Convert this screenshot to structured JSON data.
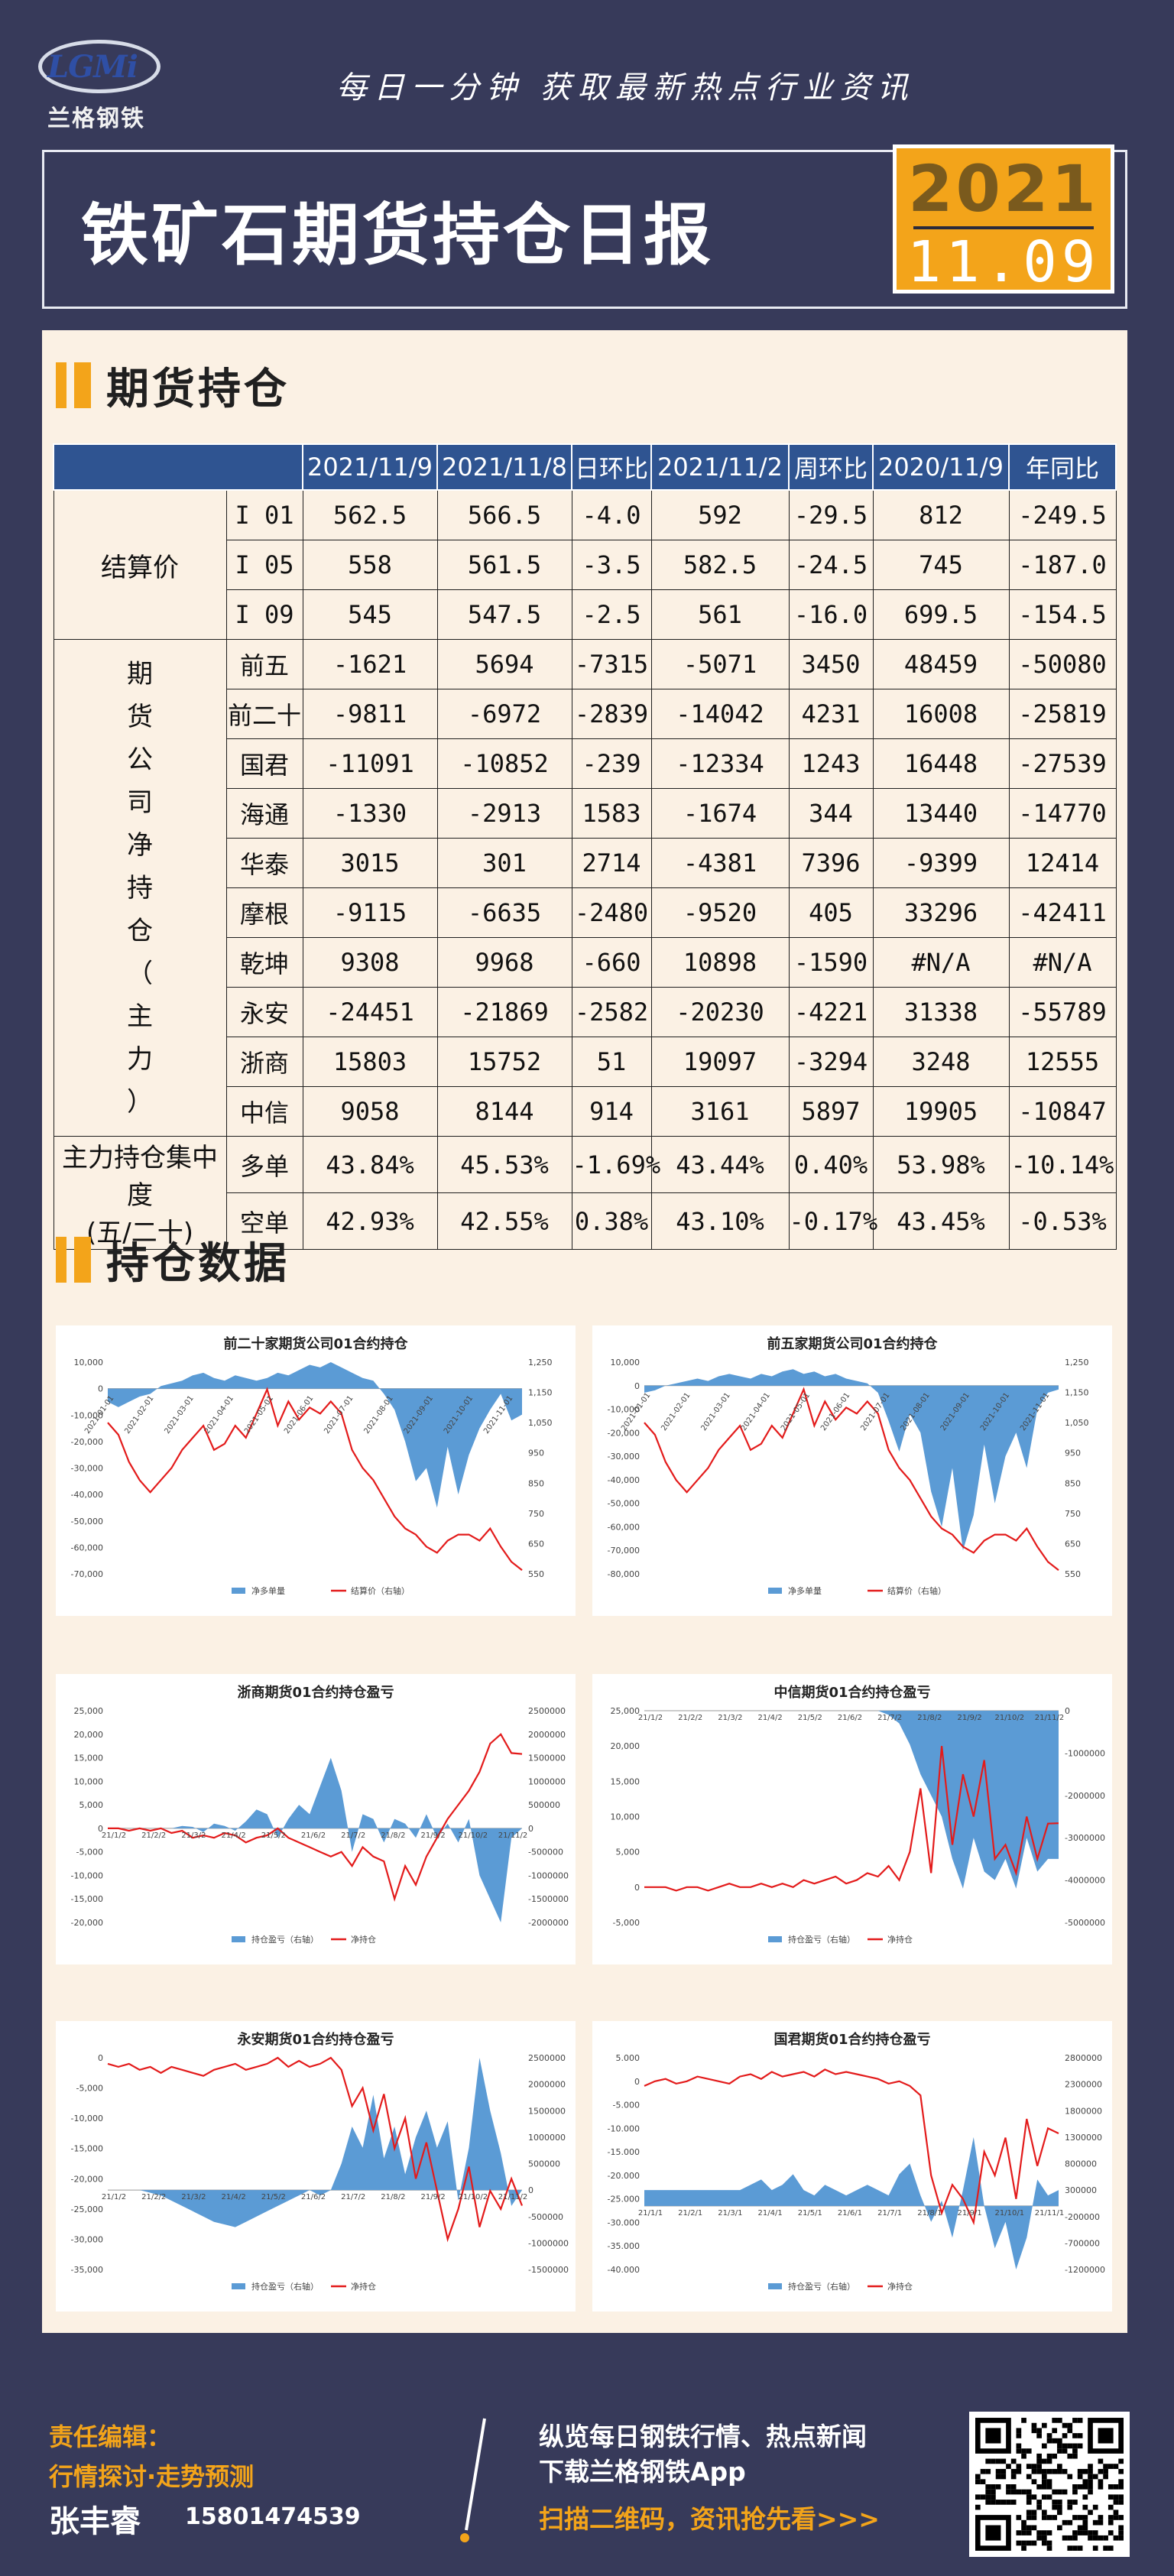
{
  "header": {
    "logo_mark": "LGMi",
    "logo_cn": "兰格钢铁",
    "slogan": "每日一分钟  获取最新热点行业资讯",
    "title": "铁矿石期货持仓日报",
    "year": "2021",
    "date": "11.09"
  },
  "section1_title": "期货持仓",
  "section2_title": "持仓数据",
  "table": {
    "columns": [
      "2021/11/9",
      "2021/11/8",
      "日环比",
      "2021/11/2",
      "周环比",
      "2020/11/9",
      "年同比"
    ],
    "settle_group": "结算价",
    "settle_rows": [
      {
        "name": "I 01",
        "v": [
          "562.5",
          "566.5",
          "-4.0",
          "592",
          "-29.5",
          "812",
          "-249.5"
        ]
      },
      {
        "name": "I 05",
        "v": [
          "558",
          "561.5",
          "-3.5",
          "582.5",
          "-24.5",
          "745",
          "-187.0"
        ]
      },
      {
        "name": "I 09",
        "v": [
          "545",
          "547.5",
          "-2.5",
          "561",
          "-16.0",
          "699.5",
          "-154.5"
        ]
      }
    ],
    "net_group_chars": [
      "期",
      "货",
      "公",
      "司",
      "净",
      "持",
      "仓",
      "（",
      "主",
      "力",
      "）"
    ],
    "net_rows": [
      {
        "name": "前五",
        "v": [
          "-1621",
          "5694",
          "-7315",
          "-5071",
          "3450",
          "48459",
          "-50080"
        ]
      },
      {
        "name": "前二十",
        "v": [
          "-9811",
          "-6972",
          "-2839",
          "-14042",
          "4231",
          "16008",
          "-25819"
        ]
      },
      {
        "name": "国君",
        "v": [
          "-11091",
          "-10852",
          "-239",
          "-12334",
          "1243",
          "16448",
          "-27539"
        ]
      },
      {
        "name": "海通",
        "v": [
          "-1330",
          "-2913",
          "1583",
          "-1674",
          "344",
          "13440",
          "-14770"
        ]
      },
      {
        "name": "华泰",
        "v": [
          "3015",
          "301",
          "2714",
          "-4381",
          "7396",
          "-9399",
          "12414"
        ]
      },
      {
        "name": "摩根",
        "v": [
          "-9115",
          "-6635",
          "-2480",
          "-9520",
          "405",
          "33296",
          "-42411"
        ]
      },
      {
        "name": "乾坤",
        "v": [
          "9308",
          "9968",
          "-660",
          "10898",
          "-1590",
          "#N/A",
          "#N/A"
        ]
      },
      {
        "name": "永安",
        "v": [
          "-24451",
          "-21869",
          "-2582",
          "-20230",
          "-4221",
          "31338",
          "-55789"
        ]
      },
      {
        "name": "浙商",
        "v": [
          "15803",
          "15752",
          "51",
          "19097",
          "-3294",
          "3248",
          "12555"
        ]
      },
      {
        "name": "中信",
        "v": [
          "9058",
          "8144",
          "914",
          "3161",
          "5897",
          "19905",
          "-10847"
        ]
      }
    ],
    "conc_group_l1": "主力持仓集中度",
    "conc_group_l2": "(五/二十)",
    "conc_rows": [
      {
        "name": "多单",
        "v": [
          "43.84%",
          "45.53%",
          "-1.69%",
          "43.44%",
          "0.40%",
          "53.98%",
          "-10.14%"
        ]
      },
      {
        "name": "空单",
        "v": [
          "42.93%",
          "42.55%",
          "0.38%",
          "43.10%",
          "-0.17%",
          "43.45%",
          "-0.53%"
        ]
      }
    ]
  },
  "chart_data": [
    {
      "type": "area",
      "title": "前二十家期货公司01合约持仓",
      "y_left_ticks": [
        "10,000",
        "0",
        "-10,000",
        "-20,000",
        "-30,000",
        "-40,000",
        "-50,000",
        "-60,000",
        "-70,000"
      ],
      "y_right_ticks": [
        "1,250",
        "1,150",
        "1,050",
        "950",
        "850",
        "750",
        "650",
        "550"
      ],
      "x_ticks": [
        "2021-01-01",
        "2021-02-01",
        "2021-03-01",
        "2021-04-01",
        "2021-05-01",
        "2021-06-01",
        "2021-07-01",
        "2021-08-01",
        "2021-09-01",
        "2021-10-01",
        "2021-11-01"
      ],
      "left_range": [
        -70000,
        10000
      ],
      "right_range": [
        550,
        1250
      ],
      "legend": [
        "净多单量",
        "结算价（右轴）"
      ],
      "series": [
        {
          "name": "净多单量",
          "axis": "left",
          "kind": "area",
          "values": [
            -5000,
            -7000,
            -5000,
            -3000,
            -2000,
            1000,
            2000,
            3000,
            5000,
            6000,
            4000,
            3000,
            5000,
            4000,
            3000,
            4000,
            6000,
            5000,
            7000,
            9000,
            8000,
            10000,
            8000,
            6000,
            4000,
            3000,
            -2000,
            -8000,
            -20000,
            -35000,
            -30000,
            -45000,
            -22000,
            -40000,
            -25000,
            -15000,
            -8000,
            -2000,
            -12000,
            -9811
          ]
        },
        {
          "name": "结算价（右轴）",
          "axis": "right",
          "kind": "line",
          "values": [
            1050,
            1010,
            920,
            860,
            820,
            860,
            900,
            960,
            1000,
            1040,
            960,
            980,
            1040,
            1000,
            1080,
            1160,
            1040,
            1120,
            1060,
            1100,
            1080,
            1120,
            1080,
            960,
            900,
            860,
            800,
            740,
            700,
            680,
            640,
            620,
            660,
            680,
            680,
            660,
            700,
            640,
            590,
            562.5
          ]
        }
      ]
    },
    {
      "type": "area",
      "title": "前五家期货公司01合约持仓",
      "y_left_ticks": [
        "10,000",
        "0",
        "-10,000",
        "-20,000",
        "-30,000",
        "-40,000",
        "-50,000",
        "-60,000",
        "-70,000",
        "-80,000"
      ],
      "y_right_ticks": [
        "1,250",
        "1,150",
        "1,050",
        "950",
        "850",
        "750",
        "650",
        "550"
      ],
      "x_ticks": [
        "2021-01-01",
        "2021-02-01",
        "2021-03-01",
        "2021-04-01",
        "2021-05-01",
        "2021-06-01",
        "2021-07-01",
        "2021-08-01",
        "2021-09-01",
        "2021-10-01",
        "2021-11-01"
      ],
      "left_range": [
        -80000,
        10000
      ],
      "right_range": [
        550,
        1250
      ],
      "legend": [
        "净多单量",
        "结算价（右轴）"
      ],
      "series": [
        {
          "name": "净多单量",
          "axis": "left",
          "kind": "area",
          "values": [
            -3000,
            -2000,
            0,
            1000,
            2000,
            3000,
            2000,
            4000,
            5000,
            4000,
            3000,
            5000,
            4000,
            6000,
            7000,
            5000,
            6000,
            4000,
            5000,
            3000,
            2000,
            1000,
            -3000,
            -15000,
            -28000,
            -12000,
            -20000,
            -45000,
            -60000,
            -35000,
            -70000,
            -55000,
            -25000,
            -50000,
            -30000,
            -20000,
            -35000,
            -10000,
            -3000,
            -1621
          ]
        },
        {
          "name": "结算价（右轴）",
          "axis": "right",
          "kind": "line",
          "values": [
            1050,
            1010,
            920,
            860,
            820,
            860,
            900,
            960,
            1000,
            1040,
            960,
            980,
            1040,
            1000,
            1080,
            1160,
            1040,
            1120,
            1060,
            1100,
            1080,
            1120,
            1080,
            960,
            900,
            860,
            800,
            740,
            700,
            680,
            640,
            620,
            660,
            680,
            680,
            660,
            700,
            640,
            590,
            562.5
          ]
        }
      ]
    },
    {
      "type": "area",
      "title": "浙商期货01合约持仓盈亏",
      "y_left_ticks": [
        "25,000",
        "20,000",
        "15,000",
        "10,000",
        "5,000",
        "0",
        "-5,000",
        "-10,000",
        "-15,000",
        "-20,000"
      ],
      "y_right_ticks": [
        "2500000",
        "2000000",
        "1500000",
        "1000000",
        "500000",
        "0",
        "-500000",
        "-1000000",
        "-1500000",
        "-2000000"
      ],
      "x_ticks": [
        "21/1/2",
        "21/2/2",
        "21/3/2",
        "21/4/2",
        "21/5/2",
        "21/6/2",
        "21/7/2",
        "21/8/2",
        "21/9/2",
        "21/10/2",
        "21/11/2"
      ],
      "left_range": [
        -20000,
        25000
      ],
      "right_range": [
        -2000000,
        2500000
      ],
      "legend": [
        "持仓盈亏（右轴）",
        "净持仓"
      ],
      "series": [
        {
          "name": "持仓盈亏（右轴）",
          "axis": "right",
          "kind": "area",
          "values": [
            0,
            0,
            0,
            0,
            0,
            0,
            0,
            50000,
            30000,
            -80000,
            100000,
            50000,
            -50000,
            150000,
            400000,
            300000,
            -200000,
            200000,
            500000,
            300000,
            900000,
            1500000,
            800000,
            -500000,
            300000,
            200000,
            -300000,
            200000,
            100000,
            -200000,
            300000,
            -200000,
            100000,
            -300000,
            200000,
            -1000000,
            -1500000,
            -2000000,
            -200000,
            0
          ]
        },
        {
          "name": "净持仓",
          "axis": "left",
          "kind": "line",
          "values": [
            0,
            0,
            -500,
            0,
            -500,
            0,
            -1000,
            -500,
            -2000,
            -1500,
            -2000,
            -1000,
            -1500,
            -3000,
            -2000,
            -1500,
            0,
            -2000,
            -3000,
            -4000,
            -5000,
            -6000,
            -5000,
            -8000,
            -4000,
            -6000,
            -7000,
            -15000,
            -8000,
            -12000,
            -6000,
            -2000,
            2000,
            5000,
            8000,
            12000,
            18000,
            20000,
            16000,
            15803
          ]
        }
      ]
    },
    {
      "type": "area",
      "title": "中信期货01合约持仓盈亏",
      "y_left_ticks": [
        "25,000",
        "20,000",
        "15,000",
        "10,000",
        "5,000",
        "0",
        "-5,000"
      ],
      "y_right_ticks": [
        "0",
        "-1000000",
        "-2000000",
        "-3000000",
        "-4000000",
        "-5000000"
      ],
      "x_ticks": [
        "21/1/2",
        "21/2/2",
        "21/3/2",
        "21/4/2",
        "21/5/2",
        "21/6/2",
        "21/7/2",
        "21/8/2",
        "21/9/2",
        "21/10/2",
        "21/11/2"
      ],
      "left_range": [
        -5000,
        25000
      ],
      "right_range": [
        -5000000,
        0
      ],
      "legend": [
        "持仓盈亏（右轴）",
        "净持仓"
      ],
      "series": [
        {
          "name": "持仓盈亏（右轴）",
          "axis": "right",
          "kind": "area",
          "values": [
            0,
            0,
            0,
            0,
            0,
            0,
            0,
            0,
            0,
            0,
            0,
            0,
            0,
            0,
            0,
            0,
            0,
            0,
            0,
            0,
            0,
            0,
            0,
            -100000,
            -300000,
            -800000,
            -1500000,
            -2000000,
            -2500000,
            -3500000,
            -4200000,
            -3000000,
            -3800000,
            -4000000,
            -3500000,
            -4200000,
            -3000000,
            -3800000,
            -3500000,
            -3500000
          ]
        },
        {
          "name": "净持仓",
          "axis": "left",
          "kind": "line",
          "values": [
            0,
            0,
            0,
            -500,
            0,
            0,
            -500,
            0,
            500,
            0,
            0,
            500,
            0,
            500,
            0,
            1000,
            500,
            1000,
            1500,
            500,
            1000,
            2000,
            1500,
            3000,
            1000,
            5000,
            14000,
            2000,
            20000,
            6000,
            16000,
            10000,
            18000,
            4000,
            6000,
            2000,
            10000,
            4000,
            9000,
            9058
          ]
        }
      ]
    },
    {
      "type": "area",
      "title": "永安期货01合约持仓盈亏",
      "y_left_ticks": [
        "0",
        "-5,000",
        "-10,000",
        "-15,000",
        "-20,000",
        "-25,000",
        "-30,000",
        "-35,000"
      ],
      "y_right_ticks": [
        "2500000",
        "2000000",
        "1500000",
        "1000000",
        "500000",
        "0",
        "-500000",
        "-1000000",
        "-1500000"
      ],
      "x_ticks": [
        "21/1/2",
        "21/2/2",
        "21/3/2",
        "21/4/2",
        "21/5/2",
        "21/6/2",
        "21/7/2",
        "21/8/2",
        "21/9/2",
        "21/10/2",
        "21/11/2"
      ],
      "left_range": [
        -35000,
        0
      ],
      "right_range": [
        -1500000,
        2500000
      ],
      "legend": [
        "持仓盈亏（右轴）",
        "净持仓"
      ],
      "series": [
        {
          "name": "持仓盈亏（右轴）",
          "axis": "right",
          "kind": "area",
          "values": [
            0,
            0,
            0,
            0,
            -50000,
            -100000,
            -200000,
            -300000,
            -400000,
            -500000,
            -600000,
            -650000,
            -700000,
            -600000,
            -500000,
            -400000,
            -300000,
            -200000,
            -100000,
            0,
            -100000,
            0,
            500000,
            1200000,
            800000,
            1800000,
            600000,
            1200000,
            300000,
            1000000,
            1500000,
            800000,
            1300000,
            -200000,
            800000,
            2500000,
            1500000,
            700000,
            -300000,
            0
          ]
        },
        {
          "name": "净持仓",
          "axis": "left",
          "kind": "line",
          "values": [
            -1000,
            -1500,
            -1000,
            -2000,
            -1500,
            -2500,
            -1500,
            -2000,
            -2500,
            -3000,
            -2000,
            -1500,
            -1000,
            -2000,
            -1500,
            -1000,
            0,
            -1500,
            -500,
            -1500,
            -1000,
            0,
            -2000,
            -8000,
            -5000,
            -12000,
            -6000,
            -15000,
            -10000,
            -20000,
            -14000,
            -22000,
            -30000,
            -25000,
            -18000,
            -28000,
            -22000,
            -25000,
            -20000,
            -24451
          ]
        }
      ]
    },
    {
      "type": "area",
      "title": "国君期货01合约持仓盈亏",
      "y_left_ticks": [
        "5.000",
        "0",
        "-5.000",
        "-10.000",
        "-15.000",
        "-20.000",
        "-25.000",
        "-30.000",
        "-35.000",
        "-40.000"
      ],
      "y_right_ticks": [
        "2800000",
        "2300000",
        "1800000",
        "1300000",
        "800000",
        "300000",
        "-200000",
        "-700000",
        "-1200000"
      ],
      "x_ticks": [
        "21/1/1",
        "21/2/1",
        "21/3/1",
        "21/4/1",
        "21/5/1",
        "21/6/1",
        "21/7/1",
        "21/8/1",
        "21/9/1",
        "21/10/1",
        "21/11/1"
      ],
      "left_range": [
        -40000,
        5000
      ],
      "right_range": [
        -1200000,
        2800000
      ],
      "legend": [
        "持仓盈亏（右轴）",
        "净持仓"
      ],
      "series": [
        {
          "name": "持仓盈亏（右轴）",
          "axis": "right",
          "kind": "area",
          "values": [
            300000,
            300000,
            300000,
            300000,
            300000,
            300000,
            300000,
            300000,
            300000,
            300000,
            400000,
            500000,
            300000,
            400000,
            600000,
            300000,
            200000,
            400000,
            300000,
            200000,
            300000,
            400000,
            300000,
            200000,
            600000,
            800000,
            200000,
            -300000,
            100000,
            -600000,
            300000,
            1300000,
            0,
            -800000,
            -300000,
            -1200000,
            -600000,
            500000,
            200000,
            300000
          ]
        },
        {
          "name": "净持仓",
          "axis": "left",
          "kind": "line",
          "values": [
            -1000,
            0,
            500,
            -500,
            0,
            1000,
            500,
            0,
            -500,
            1000,
            1500,
            500,
            2000,
            1000,
            1500,
            2000,
            1000,
            2500,
            1500,
            2000,
            1500,
            1000,
            500,
            -500,
            0,
            -1000,
            -3000,
            -20000,
            -28000,
            -22000,
            -25000,
            -30000,
            -15000,
            -20000,
            -12000,
            -25000,
            -8000,
            -18000,
            -10000,
            -11091
          ]
        }
      ]
    }
  ],
  "colors": {
    "accent": "#f3a41a",
    "navy": "#373a5a",
    "table_header": "#2f5491",
    "area": "#5b9bd5",
    "line": "#e31b1b",
    "up": "#e32020",
    "down": "#2f9a2f"
  },
  "footer": {
    "editor_label": "责任编辑：",
    "editor_tagline": "行情探讨·走势预测",
    "editor_name": "张丰睿",
    "editor_phone": "15801474539",
    "promo_line1": "纵览每日钢铁行情、热点新闻",
    "promo_line2": "下载兰格钢铁App",
    "promo_line3": "扫描二维码，资讯抢先看>>>"
  }
}
